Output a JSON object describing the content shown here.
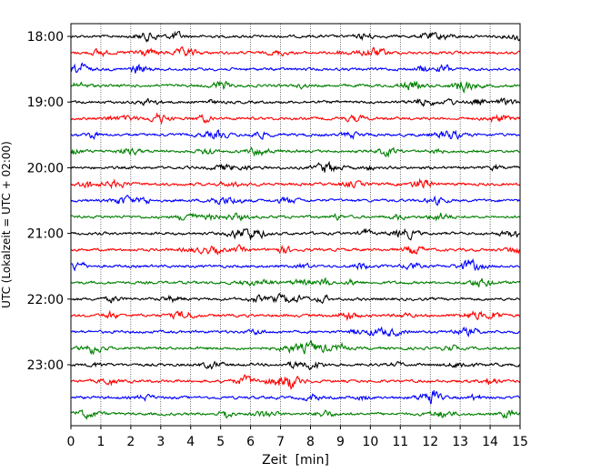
{
  "chart_data": {
    "type": "line",
    "xlabel": "Zeit  [min]",
    "ylabel": "UTC (Lokalzeit = UTC + 02:00)",
    "xlim": [
      0,
      15
    ],
    "x_ticks": [
      "0",
      "1",
      "2",
      "3",
      "4",
      "5",
      "6",
      "7",
      "8",
      "9",
      "10",
      "11",
      "12",
      "13",
      "14",
      "15"
    ],
    "y_ticks": [
      "18:00",
      "19:00",
      "20:00",
      "21:00",
      "22:00",
      "23:00"
    ],
    "y_tick_rows": [
      0,
      4,
      8,
      12,
      16,
      20
    ],
    "grid_x": true,
    "row_interval_min": 15,
    "trace_colors": [
      "#000000",
      "#ff0000",
      "#0000ff",
      "#008000"
    ],
    "trace_rows": [
      "18:00",
      "18:15",
      "18:30",
      "18:45",
      "19:00",
      "19:15",
      "19:30",
      "19:45",
      "20:00",
      "20:15",
      "20:30",
      "20:45",
      "21:00",
      "21:15",
      "21:30",
      "21:45",
      "22:00",
      "22:15",
      "22:30",
      "22:45",
      "23:00",
      "23:15",
      "23:30",
      "23:45"
    ]
  }
}
